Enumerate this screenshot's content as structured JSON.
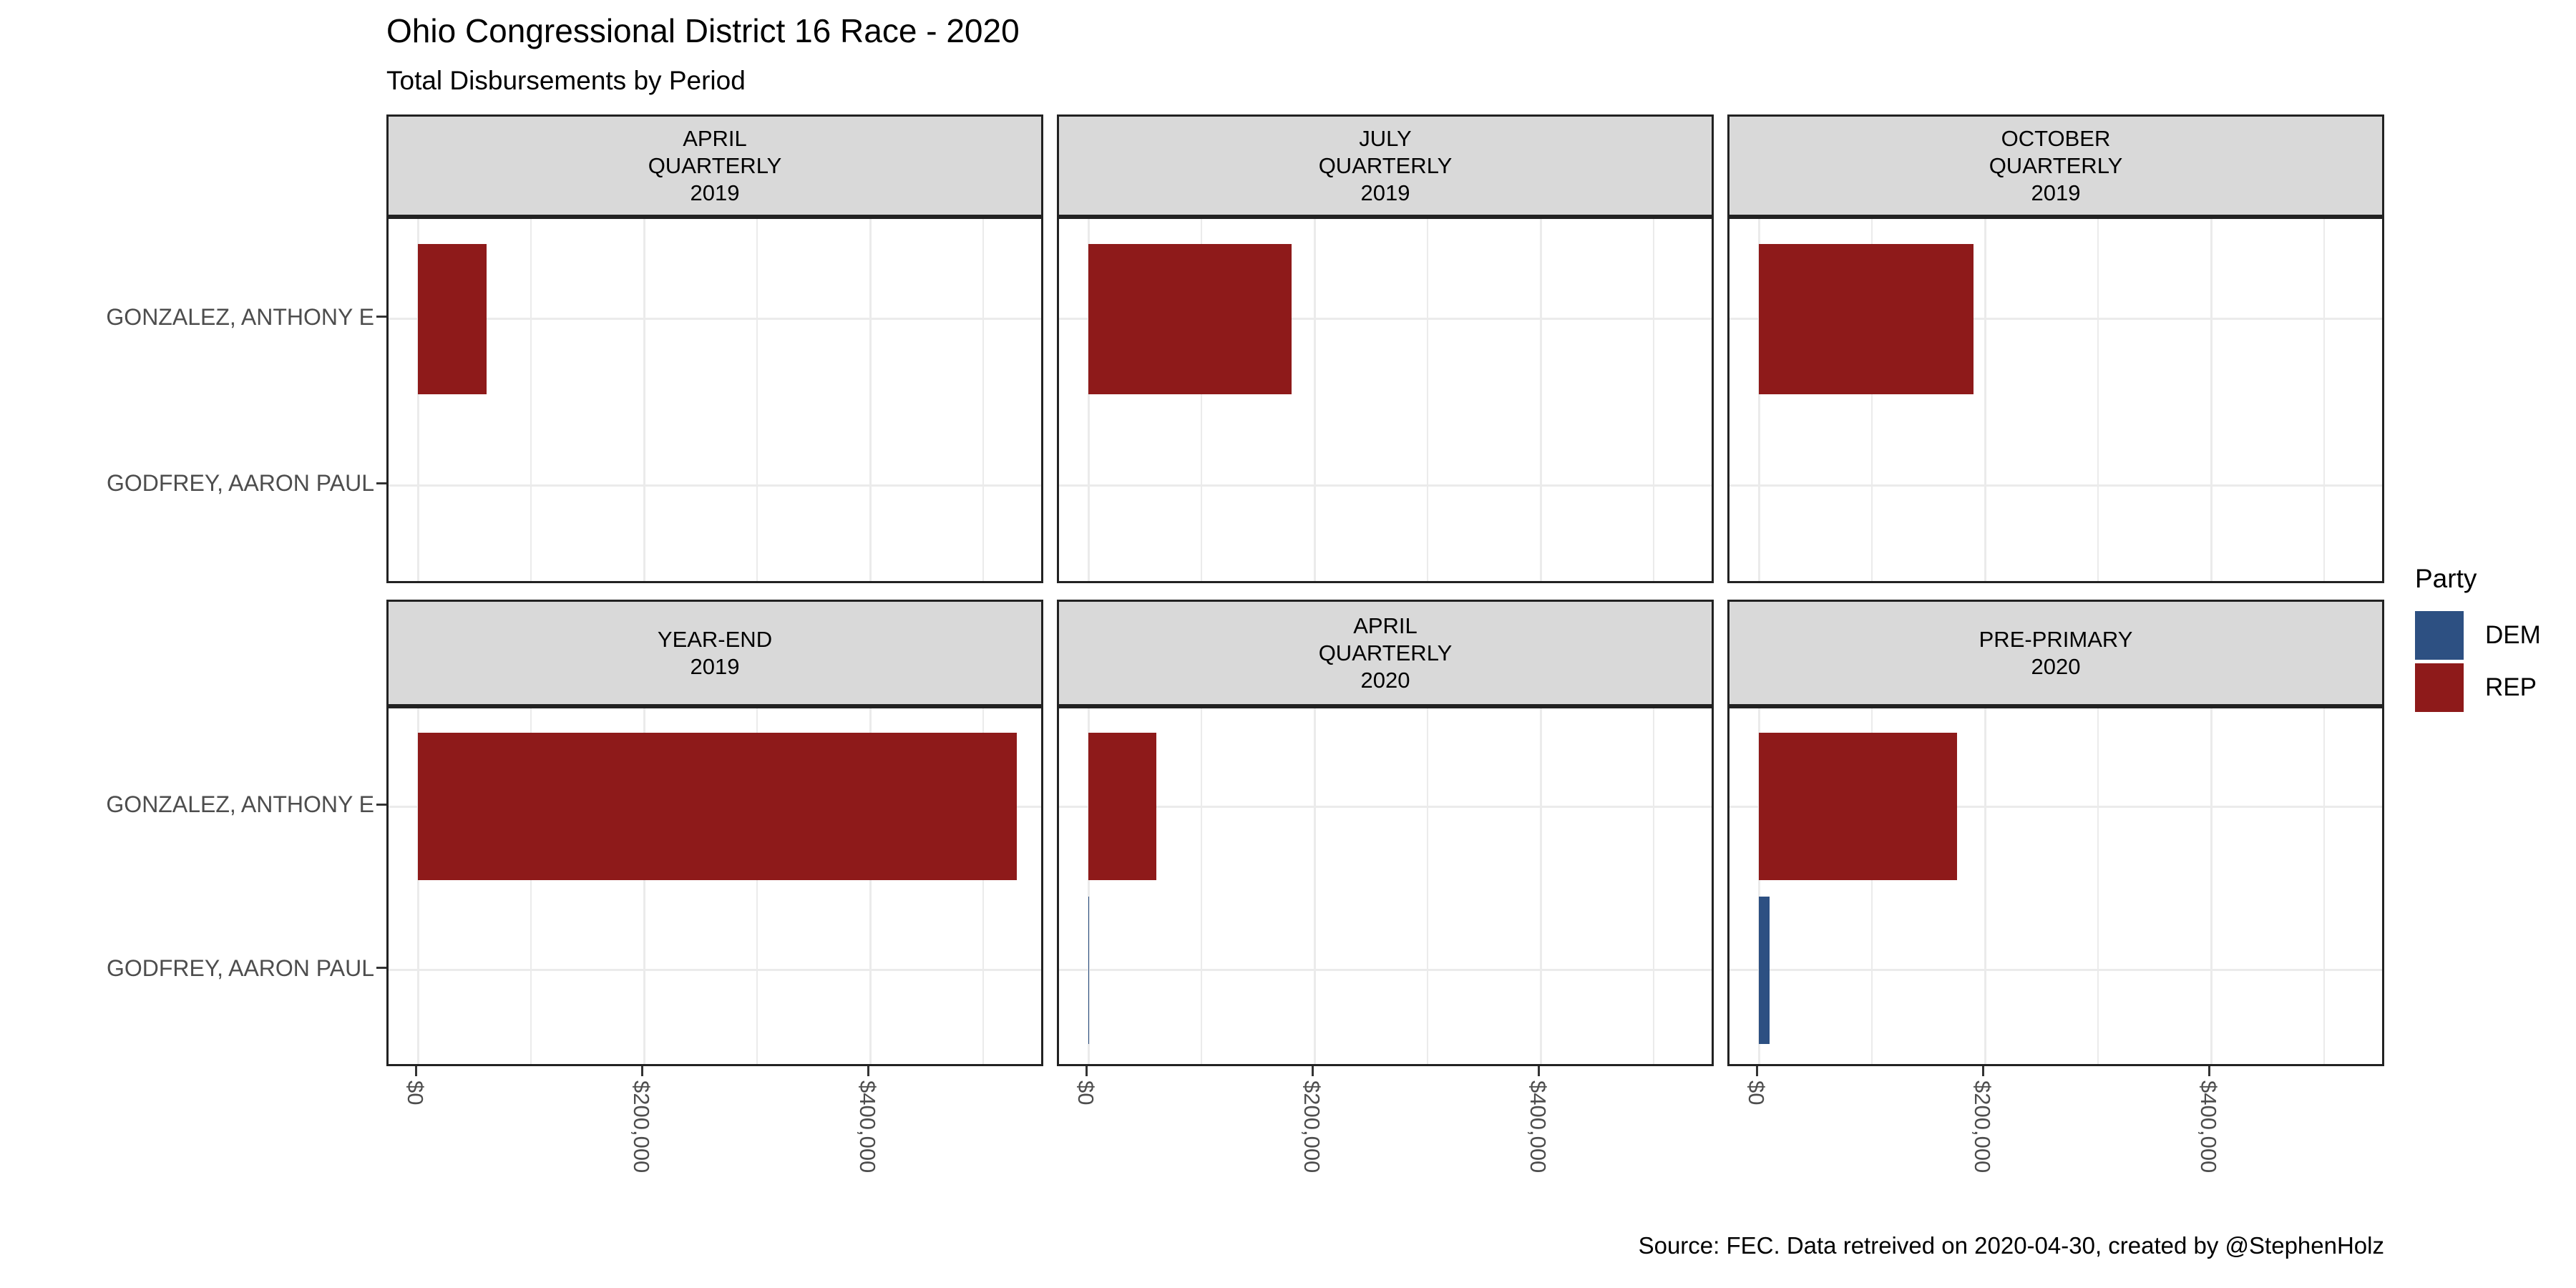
{
  "chart_data": {
    "type": "bar",
    "orientation": "horizontal",
    "title": "Ohio Congressional District 16 Race - 2020",
    "subtitle": "Total Disbursements by Period",
    "caption": "Source: FEC. Data retreived on 2020-04-30, created by @StephenHolz",
    "facet_titles": [
      [
        "APRIL",
        "QUARTERLY",
        "2019"
      ],
      [
        "JULY",
        "QUARTERLY",
        "2019"
      ],
      [
        "OCTOBER",
        "QUARTERLY",
        "2019"
      ],
      [
        "YEAR-END",
        "2019"
      ],
      [
        "APRIL",
        "QUARTERLY",
        "2020"
      ],
      [
        "PRE-PRIMARY",
        "2020"
      ]
    ],
    "categories": [
      "GONZALEZ, ANTHONY E",
      "GODFREY, AARON PAUL"
    ],
    "series": [
      {
        "name": "GONZALEZ, ANTHONY E",
        "party": "REP",
        "values": [
          61000,
          180000,
          190000,
          530000,
          60000,
          175000
        ]
      },
      {
        "name": "GODFREY, AARON PAUL",
        "party": "DEM",
        "values": [
          0,
          0,
          0,
          0,
          800,
          9500
        ]
      }
    ],
    "x_ticks": [
      {
        "value": 0,
        "label": "$0"
      },
      {
        "value": 200000,
        "label": "$200,000"
      },
      {
        "value": 400000,
        "label": "$400,000"
      }
    ],
    "x_minor": [
      100000,
      300000,
      500000
    ],
    "x_domain": [
      -26000,
      555000
    ],
    "grid": true,
    "ylabel": "",
    "xlabel": "",
    "legend": {
      "title": "Party",
      "position": "right",
      "entries": [
        {
          "label": "DEM",
          "color": "#2d5082"
        },
        {
          "label": "REP",
          "color": "#8e1a1a"
        }
      ]
    },
    "colors": {
      "DEM": "#2d5082",
      "REP": "#8e1a1a",
      "strip_bg": "#d9d9d9",
      "panel_border": "#222222",
      "gridline": "#ebebeb",
      "axis_text": "#4d4d4d"
    }
  }
}
